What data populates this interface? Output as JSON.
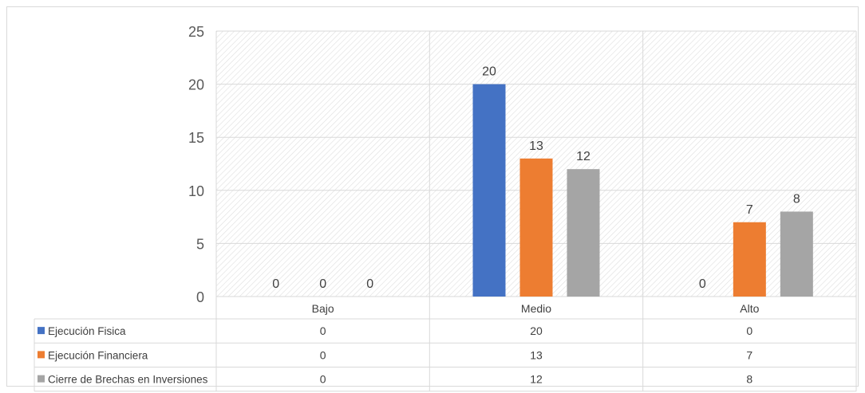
{
  "chart_data": {
    "type": "bar",
    "categories": [
      "Bajo",
      "Medio",
      "Alto"
    ],
    "series": [
      {
        "name": "Ejecución Fisica",
        "color": "#4472c4",
        "values": [
          0,
          20,
          0
        ]
      },
      {
        "name": "Ejecución Financiera",
        "color": "#ed7d31",
        "values": [
          0,
          13,
          7
        ]
      },
      {
        "name": "Cierre de Brechas en Inversiones",
        "color": "#a5a5a5",
        "values": [
          0,
          12,
          8
        ]
      }
    ],
    "ylim": [
      0,
      25
    ],
    "yticks": [
      0,
      5,
      10,
      15,
      20,
      25
    ],
    "data_labels": true,
    "data_table": true,
    "grid": true,
    "background_pattern": "diagonal-hatch"
  }
}
